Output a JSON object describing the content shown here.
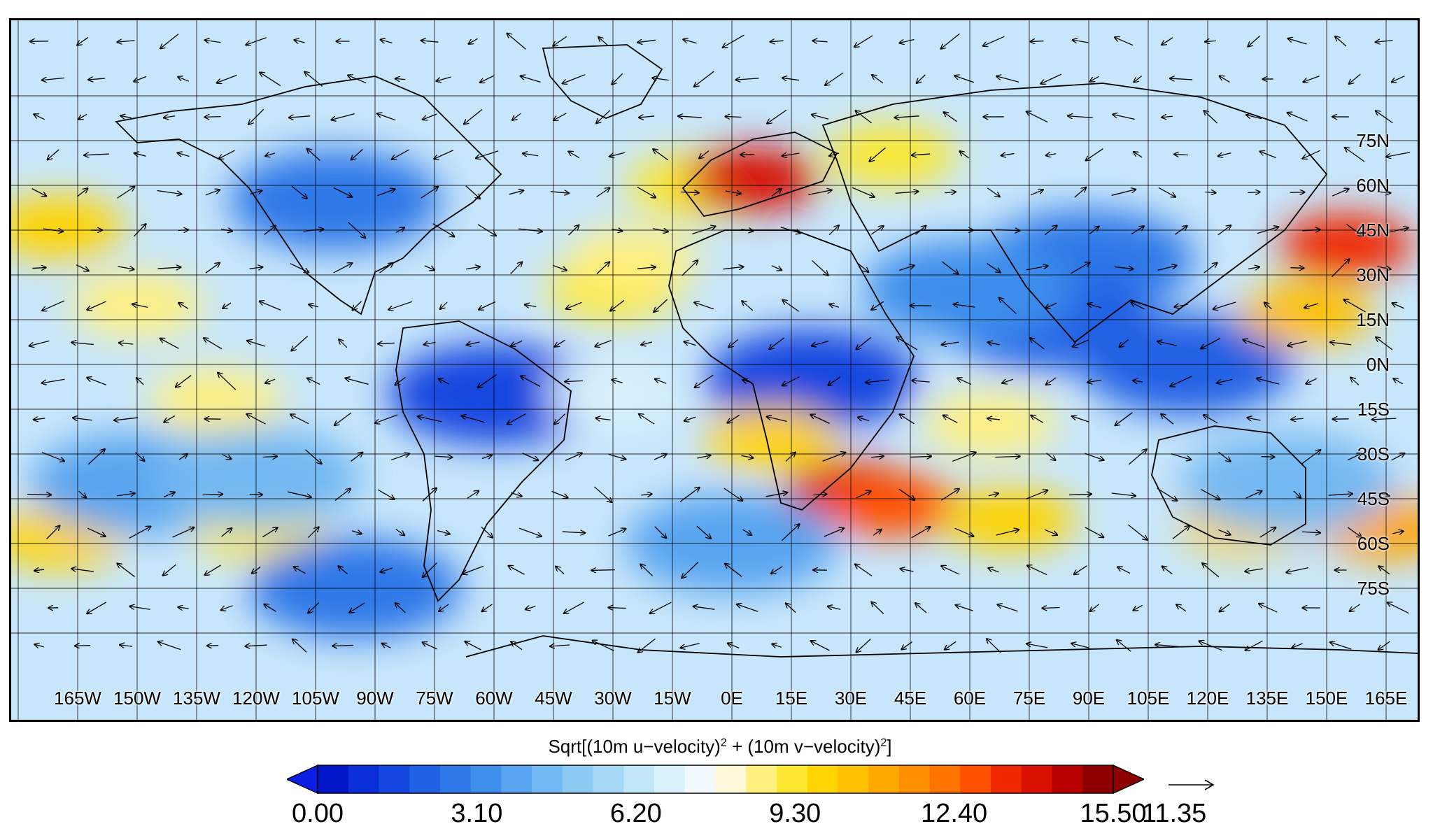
{
  "map": {
    "lat_labels": [
      "75N",
      "60N",
      "45N",
      "30N",
      "15N",
      "0N",
      "15S",
      "30S",
      "45S",
      "60S",
      "75S"
    ],
    "lon_labels": [
      "165W",
      "150W",
      "135W",
      "120W",
      "105W",
      "90W",
      "75W",
      "60W",
      "45W",
      "30W",
      "15W",
      "0E",
      "15E",
      "30E",
      "45E",
      "60E",
      "75E",
      "90E",
      "105E",
      "120E",
      "135E",
      "150E",
      "165E"
    ],
    "field_blobs": [
      {
        "lon": -100,
        "lat": 55,
        "value": 2.5
      },
      {
        "lon": -60,
        "lat": -10,
        "value": 1.5
      },
      {
        "lon": 20,
        "lat": -5,
        "value": 1.5
      },
      {
        "lon": 90,
        "lat": 35,
        "value": 2.5
      },
      {
        "lon": 80,
        "lat": 15,
        "value": 2
      },
      {
        "lon": 60,
        "lat": 25,
        "value": 3
      },
      {
        "lon": 115,
        "lat": 0,
        "value": 2
      },
      {
        "lon": -10,
        "lat": 60,
        "value": 9.5
      },
      {
        "lon": 5,
        "lat": 62,
        "value": 14
      },
      {
        "lon": -30,
        "lat": 25,
        "value": 9
      },
      {
        "lon": -25,
        "lat": 35,
        "value": 8.5
      },
      {
        "lon": 40,
        "lat": 70,
        "value": 9
      },
      {
        "lon": 155,
        "lat": 40,
        "value": 13.5
      },
      {
        "lon": 145,
        "lat": 17,
        "value": 10.5
      },
      {
        "lon": -170,
        "lat": 46,
        "value": 10
      },
      {
        "lon": -150,
        "lat": 20,
        "value": 8.5
      },
      {
        "lon": 30,
        "lat": -43,
        "value": 14
      },
      {
        "lon": 40,
        "lat": -47,
        "value": 13
      },
      {
        "lon": 70,
        "lat": -52,
        "value": 10
      },
      {
        "lon": 130,
        "lat": -53,
        "value": 10
      },
      {
        "lon": 165,
        "lat": -55,
        "value": 11
      },
      {
        "lon": -170,
        "lat": -58,
        "value": 10
      },
      {
        "lon": -120,
        "lat": -55,
        "value": 9
      },
      {
        "lon": 10,
        "lat": -25,
        "value": 10
      },
      {
        "lon": -130,
        "lat": -12,
        "value": 8.5
      },
      {
        "lon": 65,
        "lat": -20,
        "value": 8.5
      },
      {
        "lon": -95,
        "lat": -75,
        "value": 2.5
      },
      {
        "lon": 0,
        "lat": -60,
        "value": 4
      },
      {
        "lon": -150,
        "lat": -40,
        "value": 4
      },
      {
        "lon": -120,
        "lat": -38,
        "value": 4.5
      },
      {
        "lon": -30,
        "lat": -10,
        "value": 7
      },
      {
        "lon": 140,
        "lat": -40,
        "value": 4.5
      }
    ]
  },
  "colorbar": {
    "title_base": "Sqrt[(10m u−velocity)",
    "title_mid": " + (10m v−velocity)",
    "title_end": "]",
    "superscript": "2",
    "ticks": [
      "0.00",
      "3.10",
      "6.20",
      "9.30",
      "12.40",
      "15.50"
    ],
    "min": 0,
    "max": 15.5,
    "colors": [
      "#0016c8",
      "#0a2ed8",
      "#1446e0",
      "#2060e4",
      "#2e78e8",
      "#3e8eec",
      "#58a4f0",
      "#72b8f2",
      "#8ccaf4",
      "#a6d8f6",
      "#c0e6f8",
      "#daf2fc",
      "#f2faff",
      "#fff8d8",
      "#fff080",
      "#fce830",
      "#ffd400",
      "#ffc000",
      "#ffa800",
      "#ff9000",
      "#ff7400",
      "#ff5000",
      "#f02800",
      "#d81000",
      "#b80000",
      "#8c0000"
    ],
    "under_color": "#0a1ee6",
    "over_color": "#8c0000"
  },
  "reference_vector": {
    "value_label": "11.35"
  }
}
